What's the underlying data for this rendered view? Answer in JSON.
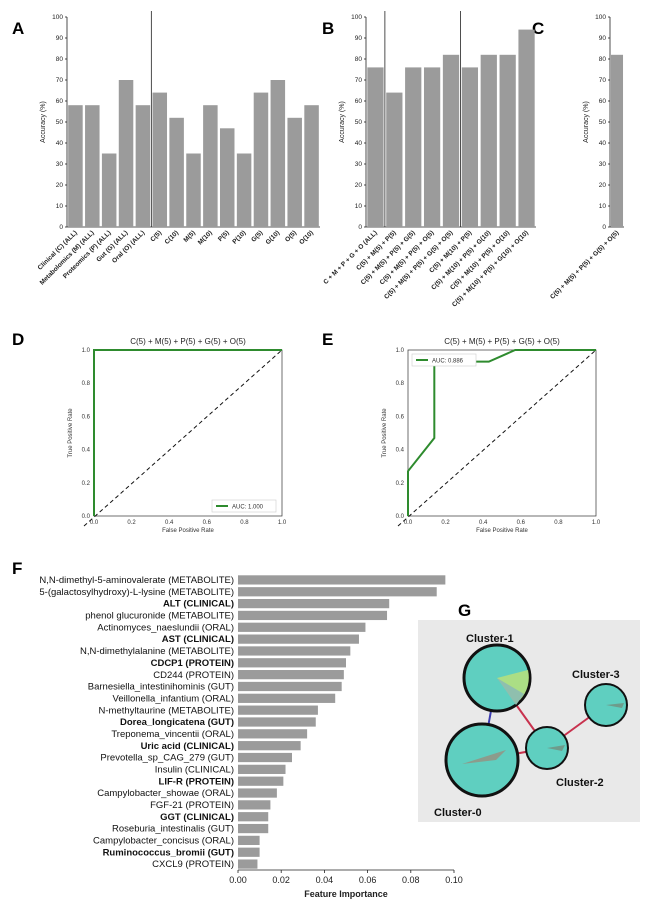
{
  "panels": {
    "A": "A",
    "B": "B",
    "C": "C",
    "D": "D",
    "E": "E",
    "F": "F",
    "G": "G"
  },
  "chart_data": [
    {
      "id": "A",
      "type": "bar",
      "ylabel": "Accuracy (%)",
      "ylim": [
        0,
        100
      ],
      "yticks": [
        0,
        10,
        20,
        30,
        40,
        50,
        60,
        70,
        80,
        90,
        100
      ],
      "categories": [
        "Clinical (C) (ALL)",
        "Metabolomics (M) (ALL)",
        "Proteomics (P) (ALL)",
        "Gut (G) (ALL)",
        "Oral (O) (ALL)",
        "C(5)",
        "C(10)",
        "M(5)",
        "M(10)",
        "P(5)",
        "P(10)",
        "G(5)",
        "G(10)",
        "O(5)",
        "O(10)"
      ],
      "values": [
        58,
        58,
        35,
        70,
        58,
        64,
        52,
        35,
        58,
        47,
        35,
        64,
        70,
        52,
        58
      ],
      "separator_after_index": 4
    },
    {
      "id": "B",
      "type": "bar",
      "ylabel": "Accuracy (%)",
      "ylim": [
        0,
        100
      ],
      "yticks": [
        0,
        10,
        20,
        30,
        40,
        50,
        60,
        70,
        80,
        90,
        100
      ],
      "categories": [
        "C + M + P + G + O (ALL)",
        "C(5) + M(5) + P(5)",
        "C(5) + M(5) + P(5) + G(5)",
        "C(5) + M(5) + P(5) + O(5)",
        "C(5) + M(5) + P(5) + G(5) + O(5)",
        "C(5) + M(10) + P(5)",
        "C(5) + M(10) + P(5) + G(10)",
        "C(5) + M(10) + P(5) + O(10)",
        "C(5) + M(10) + P(5) + G(10) + O(10)"
      ],
      "values": [
        76,
        64,
        76,
        76,
        82,
        76,
        82,
        82,
        94
      ],
      "separator_after_indices": [
        0,
        4
      ]
    },
    {
      "id": "C",
      "type": "bar",
      "ylabel": "Accuracy (%)",
      "ylim": [
        0,
        100
      ],
      "yticks": [
        0,
        10,
        20,
        30,
        40,
        50,
        60,
        70,
        80,
        90,
        100
      ],
      "categories": [
        "C(5) + M(5) + P(5) + G(5) + O(5)"
      ],
      "values": [
        82
      ]
    },
    {
      "id": "D",
      "type": "line",
      "title": "C(5) + M(5) + P(5) + G(5) + O(5)",
      "xlabel": "False Positive Rate",
      "ylabel": "True Positive Rate",
      "xlim": [
        0,
        1
      ],
      "ylim": [
        0,
        1
      ],
      "xticks": [
        "0.0",
        "0.2",
        "0.4",
        "0.6",
        "0.8",
        "1.0"
      ],
      "yticks": [
        "0.0",
        "0.2",
        "0.4",
        "0.6",
        "0.8",
        "1.0"
      ],
      "series": [
        {
          "name": "AUC: 1.000",
          "x": [
            0,
            0,
            1
          ],
          "y": [
            0,
            1,
            1
          ],
          "color": "#2e8b2e"
        }
      ],
      "diagonal": true,
      "legend_position": "bottom-right"
    },
    {
      "id": "E",
      "type": "line",
      "title": "C(5) + M(5) + P(5) + G(5) + O(5)",
      "xlabel": "False Positive Rate",
      "ylabel": "True Positive Rate",
      "xlim": [
        0,
        1
      ],
      "ylim": [
        0,
        1
      ],
      "xticks": [
        "0.0",
        "0.2",
        "0.4",
        "0.6",
        "0.8",
        "1.0"
      ],
      "yticks": [
        "0.0",
        "0.2",
        "0.4",
        "0.6",
        "0.8",
        "1.0"
      ],
      "series": [
        {
          "name": "AUC: 0.886",
          "x": [
            0,
            0,
            0.14,
            0.14,
            0.43,
            0.57,
            1
          ],
          "y": [
            0,
            0.27,
            0.47,
            0.93,
            0.93,
            1,
            1
          ],
          "color": "#2e8b2e"
        }
      ],
      "diagonal": true,
      "legend_position": "top-left"
    },
    {
      "id": "F",
      "type": "bar",
      "orientation": "horizontal",
      "xlabel": "Feature Importance",
      "xlim": [
        0,
        0.1
      ],
      "xticks": [
        "0.00",
        "0.02",
        "0.04",
        "0.06",
        "0.08",
        "0.10"
      ],
      "categories": [
        {
          "label": "N,N-dimethyl-5-aminovalerate (METABOLITE)",
          "bold": false
        },
        {
          "label": "5-(galactosylhydroxy)-L-lysine (METABOLITE)",
          "bold": false
        },
        {
          "label": "ALT (CLINICAL)",
          "bold": true
        },
        {
          "label": "phenol glucuronide (METABOLITE)",
          "bold": false
        },
        {
          "label": "Actinomyces_naeslundii (ORAL)",
          "bold": false
        },
        {
          "label": "AST (CLINICAL)",
          "bold": true
        },
        {
          "label": "N,N-dimethylalanine (METABOLITE)",
          "bold": false
        },
        {
          "label": "CDCP1 (PROTEIN)",
          "bold": true
        },
        {
          "label": "CD244 (PROTEIN)",
          "bold": false
        },
        {
          "label": "Barnesiella_intestinihominis (GUT)",
          "bold": false
        },
        {
          "label": "Veillonella_infantium (ORAL)",
          "bold": false
        },
        {
          "label": "N-methyltaurine (METABOLITE)",
          "bold": false
        },
        {
          "label": "Dorea_longicatena (GUT)",
          "bold": true
        },
        {
          "label": "Treponema_vincentii (ORAL)",
          "bold": false
        },
        {
          "label": "Uric acid (CLINICAL)",
          "bold": true
        },
        {
          "label": "Prevotella_sp_CAG_279 (GUT)",
          "bold": false
        },
        {
          "label": "Insulin (CLINICAL)",
          "bold": false
        },
        {
          "label": "LIF-R (PROTEIN)",
          "bold": true
        },
        {
          "label": "Campylobacter_showae (ORAL)",
          "bold": false
        },
        {
          "label": "FGF-21 (PROTEIN)",
          "bold": false
        },
        {
          "label": "GGT (CLINICAL)",
          "bold": true
        },
        {
          "label": "Roseburia_intestinalis (GUT)",
          "bold": false
        },
        {
          "label": "Campylobacter_concisus (ORAL)",
          "bold": false
        },
        {
          "label": "Ruminococcus_bromii (GUT)",
          "bold": true
        },
        {
          "label": "CXCL9 (PROTEIN)",
          "bold": false
        }
      ],
      "values": [
        0.096,
        0.092,
        0.07,
        0.069,
        0.059,
        0.056,
        0.052,
        0.05,
        0.049,
        0.048,
        0.045,
        0.037,
        0.036,
        0.032,
        0.029,
        0.025,
        0.022,
        0.021,
        0.018,
        0.015,
        0.014,
        0.014,
        0.01,
        0.01,
        0.009
      ]
    }
  ],
  "network": {
    "nodes": [
      {
        "id": "Cluster-1",
        "label": "Cluster-1"
      },
      {
        "id": "Cluster-3",
        "label": "Cluster-3"
      },
      {
        "id": "Cluster-2",
        "label": "Cluster-2"
      },
      {
        "id": "Cluster-0",
        "label": "Cluster-0"
      }
    ],
    "edges": [
      {
        "from": "Cluster-1",
        "to": "Cluster-0",
        "color": "#3b3bb0"
      },
      {
        "from": "Cluster-1",
        "to": "Cluster-2",
        "color": "#c8324e"
      },
      {
        "from": "Cluster-0",
        "to": "Cluster-2",
        "color": "#c8324e"
      },
      {
        "from": "Cluster-2",
        "to": "Cluster-3",
        "color": "#c8324e"
      }
    ],
    "node_color": "#5fcfc0",
    "background": "#e9e9e9"
  }
}
